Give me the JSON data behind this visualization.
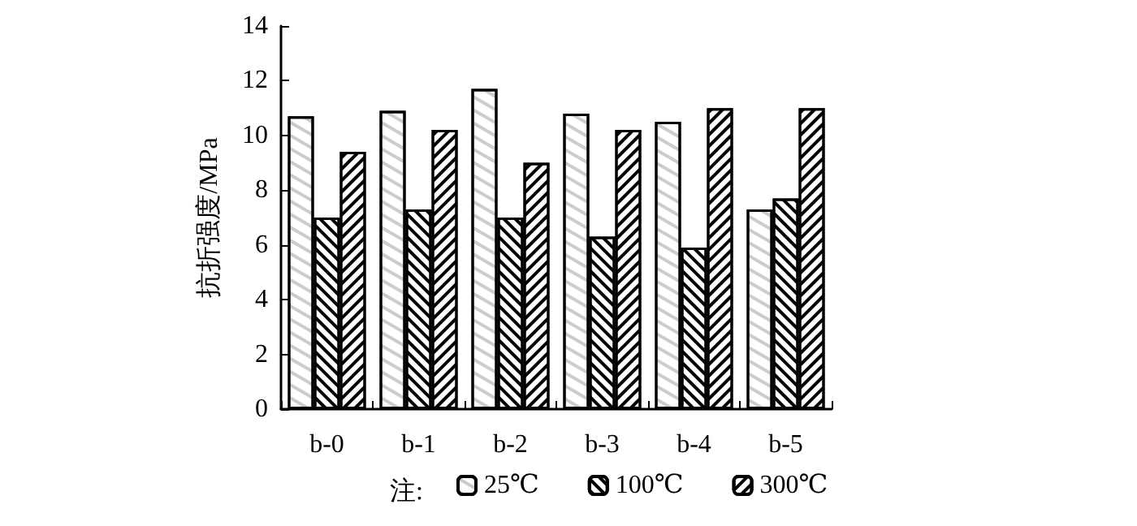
{
  "chart_data": {
    "type": "bar",
    "ylabel": "抗折强度/MPa",
    "legend_title": "注:",
    "categories": [
      "b-0",
      "b-1",
      "b-2",
      "b-3",
      "b-4",
      "b-5"
    ],
    "series": [
      {
        "name": "25℃",
        "color": "#ffffff",
        "values": [
          10.7,
          10.9,
          11.7,
          10.8,
          10.5,
          7.3
        ]
      },
      {
        "name": "100℃",
        "color": "#ffffff",
        "values": [
          7.0,
          7.3,
          7.0,
          6.3,
          5.9,
          7.7
        ]
      },
      {
        "name": "300℃",
        "color": "#ffffff",
        "values": [
          9.4,
          10.2,
          9.0,
          10.2,
          11.0,
          11.0
        ]
      }
    ],
    "ylim": [
      0,
      14
    ],
    "yticks": [
      0,
      2,
      4,
      6,
      8,
      10,
      12,
      14
    ],
    "grid": false,
    "legend": "bottom"
  }
}
